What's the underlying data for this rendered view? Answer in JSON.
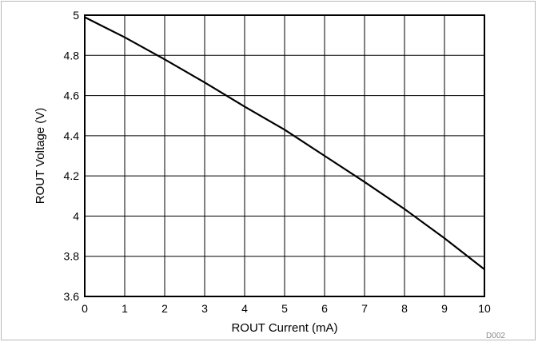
{
  "chart_data": {
    "type": "line",
    "title": "",
    "xlabel": "ROUT Current (mA)",
    "ylabel": "ROUT Voltage (V)",
    "xlim": [
      0,
      10
    ],
    "ylim": [
      3.6,
      5
    ],
    "xticks": [
      "0",
      "1",
      "2",
      "3",
      "4",
      "5",
      "6",
      "7",
      "8",
      "9",
      "10"
    ],
    "yticks": [
      "5",
      "4.8",
      "4.6",
      "4.4",
      "4.2",
      "4",
      "3.8",
      "3.6"
    ],
    "grid": true,
    "series": [
      {
        "x": [
          0,
          1,
          2,
          3,
          4,
          5,
          6,
          7,
          8,
          9,
          10
        ],
        "y": [
          4.99,
          4.89,
          4.78,
          4.665,
          4.545,
          4.43,
          4.3,
          4.17,
          4.035,
          3.89,
          3.735
        ]
      }
    ],
    "figure_code": "D002",
    "line_color": "#000000",
    "grid_color": "#000000"
  }
}
